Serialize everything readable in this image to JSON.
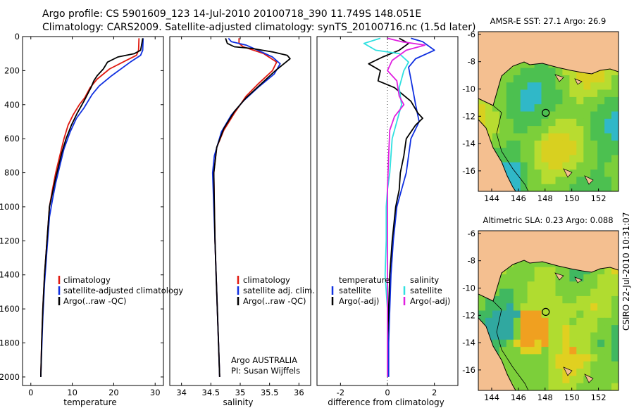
{
  "header": {
    "line1": "Argo profile: CS 5901609_123 14-Jul-2010 20100718_390 11.749S 148.051E",
    "line2": "Climatology: CARS2009. Satellite-adjusted climatology: synTS_20100716.nc (1.5d later)"
  },
  "credit": "CSIRO 22-Jul-2010 10:31:07",
  "colors": {
    "red": "#e01a10",
    "blue": "#1030e0",
    "black": "#000000",
    "cyan": "#30e0e0",
    "magenta": "#e020e0",
    "land": "#f4bf90"
  },
  "chart_data": [
    {
      "type": "line",
      "id": "temperature",
      "xlabel": "temperature",
      "ylabel": "",
      "xlim": [
        -2,
        32
      ],
      "ylim": [
        2050,
        0
      ],
      "xticks": [
        0,
        10,
        20,
        30
      ],
      "yticks": [
        0,
        200,
        400,
        600,
        800,
        1000,
        1200,
        1400,
        1600,
        1800,
        2000
      ],
      "legend": [
        "climatology",
        "satellite-adjusted climatology",
        "Argo(..raw -QC)"
      ],
      "series": [
        {
          "name": "climatology",
          "color": "red",
          "points": [
            [
              26.1,
              10
            ],
            [
              26.0,
              80
            ],
            [
              25.5,
              110
            ],
            [
              23,
              140
            ],
            [
              19,
              190
            ],
            [
              16,
              250
            ],
            [
              14.3,
              300
            ],
            [
              13,
              360
            ],
            [
              11.7,
              400
            ],
            [
              10.2,
              460
            ],
            [
              9,
              520
            ],
            [
              8,
              600
            ],
            [
              7,
              700
            ],
            [
              6,
              800
            ],
            [
              5.2,
              900
            ],
            [
              4.5,
              1000
            ],
            [
              3.9,
              1200
            ],
            [
              3.3,
              1400
            ],
            [
              2.9,
              1600
            ],
            [
              2.6,
              1800
            ],
            [
              2.4,
              2000
            ]
          ]
        },
        {
          "name": "satellite-adjusted climatology",
          "color": "blue",
          "points": [
            [
              27.1,
              10
            ],
            [
              27.0,
              80
            ],
            [
              26.5,
              110
            ],
            [
              24,
              150
            ],
            [
              19.5,
              230
            ],
            [
              16.5,
              290
            ],
            [
              14.8,
              340
            ],
            [
              12.8,
              420
            ],
            [
              11,
              480
            ],
            [
              9.5,
              560
            ],
            [
              8,
              660
            ],
            [
              7,
              760
            ],
            [
              6,
              860
            ],
            [
              5.2,
              960
            ],
            [
              4.5,
              1060
            ],
            [
              3.9,
              1250
            ],
            [
              3.3,
              1450
            ],
            [
              2.9,
              1650
            ],
            [
              2.6,
              1850
            ],
            [
              2.4,
              2000
            ]
          ]
        },
        {
          "name": "Argo(..raw -QC)",
          "color": "black",
          "points": [
            [
              27.0,
              10
            ],
            [
              26.8,
              40
            ],
            [
              26.5,
              80
            ],
            [
              25,
              100
            ],
            [
              21,
              120
            ],
            [
              18.5,
              150
            ],
            [
              17.5,
              190
            ],
            [
              16,
              230
            ],
            [
              15.2,
              260
            ],
            [
              14.5,
              300
            ],
            [
              12.8,
              380
            ],
            [
              11.2,
              450
            ],
            [
              9.8,
              520
            ],
            [
              8.5,
              600
            ],
            [
              7.5,
              680
            ],
            [
              6.7,
              760
            ],
            [
              5.9,
              840
            ],
            [
              5.2,
              920
            ],
            [
              4.5,
              1000
            ],
            [
              3.9,
              1200
            ],
            [
              3.3,
              1400
            ],
            [
              2.9,
              1600
            ],
            [
              2.6,
              1800
            ],
            [
              2.4,
              2000
            ]
          ]
        }
      ]
    },
    {
      "type": "line",
      "id": "salinity",
      "xlabel": "salinity",
      "xlim": [
        33.8,
        36.2
      ],
      "ylim": [
        2050,
        0
      ],
      "xticks": [
        34,
        34.5,
        35,
        35.5,
        36
      ],
      "xticklabels": [
        "34",
        "34.5",
        "35",
        "35.5",
        "36"
      ],
      "legend": [
        "climatology",
        "satellite adj. clim.",
        "Argo(..raw -QC)"
      ],
      "annotation": [
        "Argo AUSTRALIA",
        "PI: Susan Wijffels"
      ],
      "series": [
        {
          "name": "climatology",
          "color": "red",
          "points": [
            [
              34.98,
              10
            ],
            [
              34.98,
              40
            ],
            [
              35.05,
              60
            ],
            [
              35.4,
              100
            ],
            [
              35.62,
              150
            ],
            [
              35.55,
              200
            ],
            [
              35.3,
              280
            ],
            [
              35.1,
              350
            ],
            [
              34.9,
              450
            ],
            [
              34.72,
              550
            ],
            [
              34.6,
              650
            ],
            [
              34.55,
              800
            ],
            [
              34.56,
              1000
            ],
            [
              34.57,
              1200
            ],
            [
              34.59,
              1400
            ],
            [
              34.61,
              1600
            ],
            [
              34.63,
              1800
            ],
            [
              34.65,
              2000
            ]
          ]
        },
        {
          "name": "satellite adj. clim.",
          "color": "blue",
          "points": [
            [
              34.8,
              10
            ],
            [
              34.85,
              30
            ],
            [
              35.1,
              50
            ],
            [
              35.3,
              80
            ],
            [
              35.55,
              120
            ],
            [
              35.68,
              160
            ],
            [
              35.58,
              220
            ],
            [
              35.3,
              300
            ],
            [
              35.05,
              380
            ],
            [
              34.85,
              460
            ],
            [
              34.68,
              560
            ],
            [
              34.56,
              700
            ],
            [
              34.53,
              800
            ],
            [
              34.55,
              1000
            ],
            [
              34.57,
              1200
            ],
            [
              34.59,
              1400
            ],
            [
              34.61,
              1600
            ],
            [
              34.63,
              1800
            ],
            [
              34.65,
              2000
            ]
          ]
        },
        {
          "name": "Argo(..raw -QC)",
          "color": "black",
          "points": [
            [
              34.75,
              10
            ],
            [
              34.78,
              40
            ],
            [
              34.9,
              60
            ],
            [
              35.2,
              70
            ],
            [
              35.55,
              90
            ],
            [
              35.8,
              110
            ],
            [
              35.85,
              130
            ],
            [
              35.6,
              200
            ],
            [
              35.35,
              280
            ],
            [
              35.1,
              360
            ],
            [
              34.9,
              440
            ],
            [
              34.72,
              540
            ],
            [
              34.6,
              650
            ],
            [
              34.55,
              800
            ],
            [
              34.56,
              1000
            ],
            [
              34.57,
              1200
            ],
            [
              34.59,
              1400
            ],
            [
              34.61,
              1600
            ],
            [
              34.63,
              1800
            ],
            [
              34.65,
              2000
            ]
          ]
        }
      ]
    },
    {
      "type": "line",
      "id": "difference",
      "xlabel": "difference from climatology",
      "xlim": [
        -3,
        3
      ],
      "ylim": [
        2050,
        0
      ],
      "xticks": [
        -2,
        0,
        2
      ],
      "legend_temperature": {
        "title": "temperature",
        "items": [
          "satellite",
          "Argo(-adj)"
        ]
      },
      "legend_salinity": {
        "title": "salinity",
        "items": [
          "satellite",
          "Argo(-adj)"
        ]
      },
      "series": [
        {
          "name": "temperature satellite",
          "color": "blue",
          "points": [
            [
              1.0,
              10
            ],
            [
              1.5,
              30
            ],
            [
              2.0,
              80
            ],
            [
              1.2,
              130
            ],
            [
              0.9,
              180
            ],
            [
              1.0,
              250
            ],
            [
              1.2,
              400
            ],
            [
              1.35,
              500
            ],
            [
              1.0,
              600
            ],
            [
              0.9,
              700
            ],
            [
              0.8,
              800
            ],
            [
              0.6,
              900
            ],
            [
              0.4,
              1000
            ],
            [
              0.25,
              1200
            ],
            [
              0.15,
              1400
            ],
            [
              0.1,
              1600
            ],
            [
              0.05,
              1800
            ],
            [
              0.05,
              2000
            ]
          ]
        },
        {
          "name": "temperature Argo(-adj)",
          "color": "black",
          "points": [
            [
              0.5,
              10
            ],
            [
              0.9,
              40
            ],
            [
              0.5,
              80
            ],
            [
              -0.2,
              120
            ],
            [
              -0.8,
              160
            ],
            [
              -0.3,
              200
            ],
            [
              -0.4,
              260
            ],
            [
              0.3,
              300
            ],
            [
              1.0,
              380
            ],
            [
              1.3,
              450
            ],
            [
              1.5,
              480
            ],
            [
              1.2,
              520
            ],
            [
              0.8,
              600
            ],
            [
              0.7,
              700
            ],
            [
              0.55,
              800
            ],
            [
              0.5,
              900
            ],
            [
              0.35,
              1000
            ],
            [
              0.2,
              1200
            ],
            [
              0.1,
              1400
            ],
            [
              0.05,
              1600
            ],
            [
              0.0,
              1800
            ],
            [
              0.0,
              2000
            ]
          ]
        },
        {
          "name": "salinity satellite",
          "color": "cyan",
          "points": [
            [
              -0.3,
              10
            ],
            [
              -1.0,
              40
            ],
            [
              -0.5,
              80
            ],
            [
              0.5,
              100
            ],
            [
              0.9,
              150
            ],
            [
              0.7,
              200
            ],
            [
              0.5,
              300
            ],
            [
              0.6,
              400
            ],
            [
              0.4,
              500
            ],
            [
              0.2,
              600
            ],
            [
              0.1,
              800
            ],
            [
              0.0,
              900
            ],
            [
              -0.05,
              1000
            ],
            [
              -0.05,
              1200
            ],
            [
              -0.1,
              1400
            ],
            [
              0.0,
              1600
            ],
            [
              0.0,
              1800
            ],
            [
              0.0,
              2000
            ]
          ]
        },
        {
          "name": "salinity Argo(-adj)",
          "color": "magenta",
          "points": [
            [
              0.0,
              10
            ],
            [
              0.6,
              30
            ],
            [
              1.6,
              50
            ],
            [
              0.8,
              80
            ],
            [
              0.2,
              140
            ],
            [
              0.0,
              200
            ],
            [
              0.4,
              260
            ],
            [
              0.5,
              350
            ],
            [
              0.7,
              400
            ],
            [
              0.3,
              470
            ],
            [
              0.1,
              550
            ],
            [
              0.05,
              700
            ],
            [
              0.0,
              900
            ],
            [
              0.0,
              1200
            ],
            [
              0.0,
              1500
            ],
            [
              0.0,
              1800
            ],
            [
              0.0,
              2000
            ]
          ]
        }
      ]
    },
    {
      "type": "heatmap",
      "id": "sst-map",
      "title": "AMSR-E SST: 27.1  Argo: 26.9",
      "xlim": [
        143,
        153.5
      ],
      "ylim": [
        -17.5,
        -5.8
      ],
      "xticks": [
        144,
        146,
        148,
        150,
        152
      ],
      "yticks": [
        -6,
        -8,
        -10,
        -12,
        -14,
        -16
      ],
      "argo_position": [
        148.05,
        -11.75
      ]
    },
    {
      "type": "heatmap",
      "id": "sla-map",
      "title": "Altimetric SLA: 0.23  Argo: 0.088",
      "xlim": [
        143,
        153.5
      ],
      "ylim": [
        -17.5,
        -5.8
      ],
      "xticks": [
        144,
        146,
        148,
        150,
        152
      ],
      "yticks": [
        -6,
        -8,
        -10,
        -12,
        -14,
        -16
      ],
      "argo_position": [
        148.05,
        -11.75
      ]
    }
  ]
}
